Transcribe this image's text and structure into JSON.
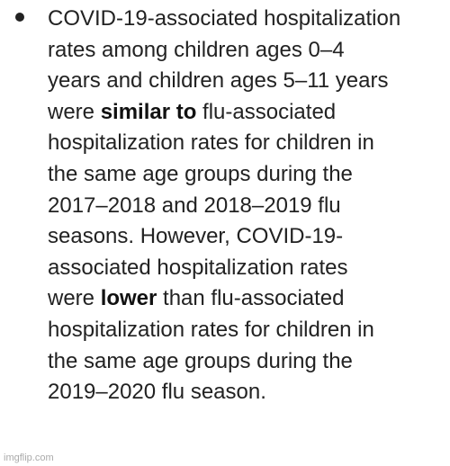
{
  "bullet": {
    "lines": [
      [
        {
          "text": "COVID-19-associated hospitalization",
          "strong": false
        }
      ],
      [
        {
          "text": "rates among children ages 0–4",
          "strong": false
        }
      ],
      [
        {
          "text": "years and children ages 5–11 years",
          "strong": false
        }
      ],
      [
        {
          "text": "were ",
          "strong": false
        },
        {
          "text": "similar to",
          "strong": true
        },
        {
          "text": " flu-associated",
          "strong": false
        }
      ],
      [
        {
          "text": "hospitalization rates for children in",
          "strong": false
        }
      ],
      [
        {
          "text": "the same age groups during the",
          "strong": false
        }
      ],
      [
        {
          "text": "2017–2018 and 2018–2019 flu",
          "strong": false
        }
      ],
      [
        {
          "text": "seasons. However, COVID-19-",
          "strong": false
        }
      ],
      [
        {
          "text": "associated hospitalization rates",
          "strong": false
        }
      ],
      [
        {
          "text": "were ",
          "strong": false
        },
        {
          "text": "lower",
          "strong": true
        },
        {
          "text": " than flu-associated",
          "strong": false
        }
      ],
      [
        {
          "text": "hospitalization rates for children in",
          "strong": false
        }
      ],
      [
        {
          "text": "the same age groups during the",
          "strong": false
        }
      ],
      [
        {
          "text": "2019–2020 flu season.",
          "strong": false
        }
      ]
    ]
  },
  "watermark": "imgflip.com"
}
